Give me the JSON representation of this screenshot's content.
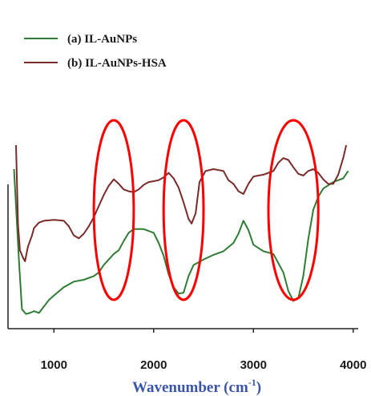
{
  "chart_data": {
    "type": "line",
    "xlabel": "Wavenumber (cm",
    "xlabel_superscript": "-1",
    "xlabel_close": ")",
    "xlim": [
      540,
      4050
    ],
    "x_ticks": [
      "1000",
      "2000",
      "3000",
      "4000"
    ],
    "y_axis_visible": false,
    "grid": false,
    "legend_position": "top-left",
    "series": [
      {
        "name": "(a) IL-AuNPs",
        "color": "#2e7d32",
        "points": [
          [
            600,
            0.8
          ],
          [
            650,
            0.3
          ],
          [
            680,
            0.04
          ],
          [
            720,
            0.015
          ],
          [
            760,
            0.02
          ],
          [
            800,
            0.03
          ],
          [
            850,
            0.02
          ],
          [
            900,
            0.055
          ],
          [
            950,
            0.09
          ],
          [
            1000,
            0.115
          ],
          [
            1100,
            0.16
          ],
          [
            1200,
            0.19
          ],
          [
            1300,
            0.2
          ],
          [
            1400,
            0.22
          ],
          [
            1450,
            0.24
          ],
          [
            1500,
            0.28
          ],
          [
            1550,
            0.31
          ],
          [
            1600,
            0.34
          ],
          [
            1650,
            0.36
          ],
          [
            1700,
            0.41
          ],
          [
            1750,
            0.455
          ],
          [
            1800,
            0.475
          ],
          [
            1900,
            0.475
          ],
          [
            2000,
            0.455
          ],
          [
            2050,
            0.4
          ],
          [
            2100,
            0.33
          ],
          [
            2150,
            0.23
          ],
          [
            2200,
            0.16
          ],
          [
            2250,
            0.125
          ],
          [
            2300,
            0.13
          ],
          [
            2350,
            0.22
          ],
          [
            2400,
            0.28
          ],
          [
            2500,
            0.31
          ],
          [
            2600,
            0.335
          ],
          [
            2700,
            0.355
          ],
          [
            2800,
            0.4
          ],
          [
            2850,
            0.45
          ],
          [
            2900,
            0.52
          ],
          [
            2950,
            0.47
          ],
          [
            3000,
            0.39
          ],
          [
            3100,
            0.355
          ],
          [
            3200,
            0.34
          ],
          [
            3300,
            0.24
          ],
          [
            3350,
            0.14
          ],
          [
            3400,
            0.085
          ],
          [
            3450,
            0.1
          ],
          [
            3500,
            0.22
          ],
          [
            3550,
            0.42
          ],
          [
            3600,
            0.58
          ],
          [
            3650,
            0.65
          ],
          [
            3700,
            0.695
          ],
          [
            3800,
            0.73
          ],
          [
            3900,
            0.75
          ],
          [
            3950,
            0.79
          ]
        ]
      },
      {
        "name": "(b) IL-AuNPs-HSA",
        "color": "#7a2a2a",
        "points": [
          [
            620,
            0.93
          ],
          [
            640,
            0.5
          ],
          [
            660,
            0.36
          ],
          [
            690,
            0.32
          ],
          [
            710,
            0.3
          ],
          [
            740,
            0.38
          ],
          [
            780,
            0.44
          ],
          [
            800,
            0.48
          ],
          [
            850,
            0.51
          ],
          [
            900,
            0.52
          ],
          [
            1000,
            0.525
          ],
          [
            1100,
            0.52
          ],
          [
            1150,
            0.49
          ],
          [
            1200,
            0.44
          ],
          [
            1250,
            0.425
          ],
          [
            1300,
            0.45
          ],
          [
            1350,
            0.49
          ],
          [
            1400,
            0.54
          ],
          [
            1450,
            0.6
          ],
          [
            1500,
            0.66
          ],
          [
            1550,
            0.71
          ],
          [
            1600,
            0.745
          ],
          [
            1650,
            0.72
          ],
          [
            1700,
            0.69
          ],
          [
            1750,
            0.68
          ],
          [
            1800,
            0.675
          ],
          [
            1850,
            0.69
          ],
          [
            1900,
            0.715
          ],
          [
            1950,
            0.73
          ],
          [
            2000,
            0.735
          ],
          [
            2050,
            0.74
          ],
          [
            2100,
            0.755
          ],
          [
            2150,
            0.78
          ],
          [
            2200,
            0.75
          ],
          [
            2250,
            0.7
          ],
          [
            2300,
            0.62
          ],
          [
            2350,
            0.53
          ],
          [
            2380,
            0.505
          ],
          [
            2420,
            0.56
          ],
          [
            2460,
            0.73
          ],
          [
            2520,
            0.79
          ],
          [
            2600,
            0.8
          ],
          [
            2700,
            0.79
          ],
          [
            2750,
            0.74
          ],
          [
            2800,
            0.72
          ],
          [
            2850,
            0.68
          ],
          [
            2900,
            0.665
          ],
          [
            2950,
            0.72
          ],
          [
            3000,
            0.76
          ],
          [
            3050,
            0.765
          ],
          [
            3100,
            0.77
          ],
          [
            3200,
            0.79
          ],
          [
            3250,
            0.835
          ],
          [
            3300,
            0.86
          ],
          [
            3350,
            0.85
          ],
          [
            3400,
            0.81
          ],
          [
            3450,
            0.775
          ],
          [
            3500,
            0.765
          ],
          [
            3550,
            0.79
          ],
          [
            3600,
            0.8
          ],
          [
            3650,
            0.78
          ],
          [
            3700,
            0.745
          ],
          [
            3750,
            0.72
          ],
          [
            3800,
            0.72
          ],
          [
            3850,
            0.77
          ],
          [
            3900,
            0.86
          ],
          [
            3930,
            0.93
          ]
        ]
      }
    ],
    "annotations": [
      {
        "shape": "ellipse",
        "color": "#ff0000",
        "x_center": 1600,
        "x_halfwidth": 200
      },
      {
        "shape": "ellipse",
        "color": "#ff0000",
        "x_center": 2300,
        "x_halfwidth": 200
      },
      {
        "shape": "ellipse",
        "color": "#ff0000",
        "x_center": 3400,
        "x_halfwidth": 250
      }
    ]
  }
}
